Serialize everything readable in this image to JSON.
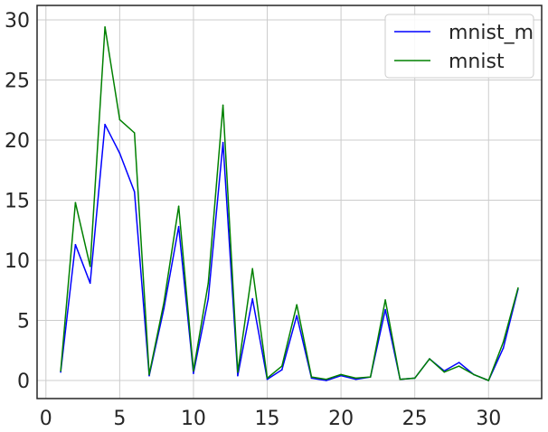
{
  "chart_data": {
    "type": "line",
    "title": "",
    "xlabel": "",
    "ylabel": "",
    "xlim": [
      -0.6,
      33.6
    ],
    "ylim": [
      -1.5,
      31.2
    ],
    "xticks": [
      0,
      5,
      10,
      15,
      20,
      25,
      30
    ],
    "yticks": [
      0,
      5,
      10,
      15,
      20,
      25,
      30
    ],
    "grid": true,
    "legend_position": "top-right",
    "x": [
      1,
      2,
      3,
      4,
      5,
      6,
      7,
      8,
      9,
      10,
      11,
      12,
      13,
      14,
      15,
      16,
      17,
      18,
      19,
      20,
      21,
      22,
      23,
      24,
      25,
      26,
      27,
      28,
      29,
      30,
      31,
      32
    ],
    "series": [
      {
        "name": "mnist_m",
        "color": "#0000ff",
        "values": [
          0.7,
          11.3,
          8.1,
          21.3,
          18.9,
          15.7,
          0.4,
          6.0,
          12.8,
          0.6,
          6.8,
          19.8,
          0.4,
          6.8,
          0.1,
          0.9,
          5.4,
          0.2,
          0.0,
          0.4,
          0.1,
          0.3,
          5.9,
          0.1,
          0.2,
          1.8,
          0.8,
          1.5,
          0.5,
          0.0,
          2.7,
          7.6
        ]
      },
      {
        "name": "mnist",
        "color": "#008000",
        "values": [
          0.8,
          14.8,
          9.5,
          29.4,
          21.7,
          20.6,
          0.5,
          6.5,
          14.5,
          0.8,
          8.1,
          22.9,
          0.7,
          9.3,
          0.2,
          1.2,
          6.3,
          0.3,
          0.1,
          0.5,
          0.2,
          0.3,
          6.7,
          0.1,
          0.2,
          1.8,
          0.7,
          1.2,
          0.5,
          0.0,
          3.2,
          7.7
        ]
      }
    ]
  }
}
